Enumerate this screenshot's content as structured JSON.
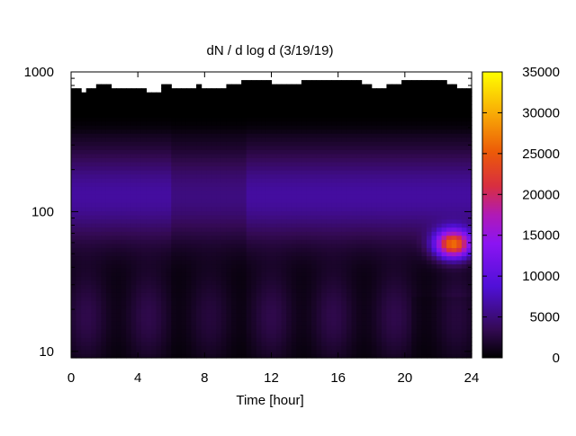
{
  "chart_data": {
    "type": "heatmap",
    "title": "dN / d log d (3/19/19)",
    "xlabel": "Time [hour]",
    "ylabel": "",
    "xlim": [
      0,
      24
    ],
    "ylim": [
      9,
      1000
    ],
    "y_scale": "log",
    "x_ticks": [
      0,
      4,
      8,
      12,
      16,
      20,
      24
    ],
    "x_tick_labels": [
      "0",
      "4",
      "8",
      "12",
      "16",
      "20",
      "24"
    ],
    "y_ticks": [
      10,
      100,
      1000
    ],
    "y_tick_labels": [
      "10",
      "100",
      "1000"
    ],
    "colorbar": {
      "range": [
        0,
        35000
      ],
      "ticks": [
        0,
        5000,
        10000,
        15000,
        20000,
        25000,
        30000,
        35000
      ],
      "tick_labels": [
        "0",
        "5000",
        "10000",
        "15000",
        "20000",
        "25000",
        "30000",
        "35000"
      ],
      "colormap": "gnuplot (black-purple-red-yellow)"
    },
    "grid": false,
    "data_summary": {
      "background_band_diameter": [
        80,
        200
      ],
      "background_band_value": 6500,
      "hotspot_time": [
        21.5,
        24
      ],
      "hotspot_diameter": [
        45,
        85
      ],
      "hotspot_peak_value": 30000,
      "upper_data_limit_diameter_approx": 780
    }
  }
}
